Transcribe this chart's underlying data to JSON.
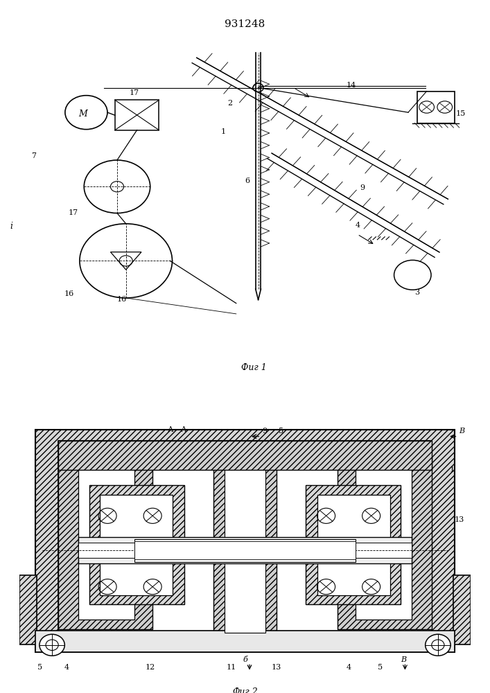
{
  "title": "931248",
  "fig1_label": "Фиг 1",
  "fig2_label": "Фиг.2",
  "bg_color": "#ffffff",
  "line_color": "#000000",
  "title_fontsize": 11,
  "label_fontsize": 8
}
